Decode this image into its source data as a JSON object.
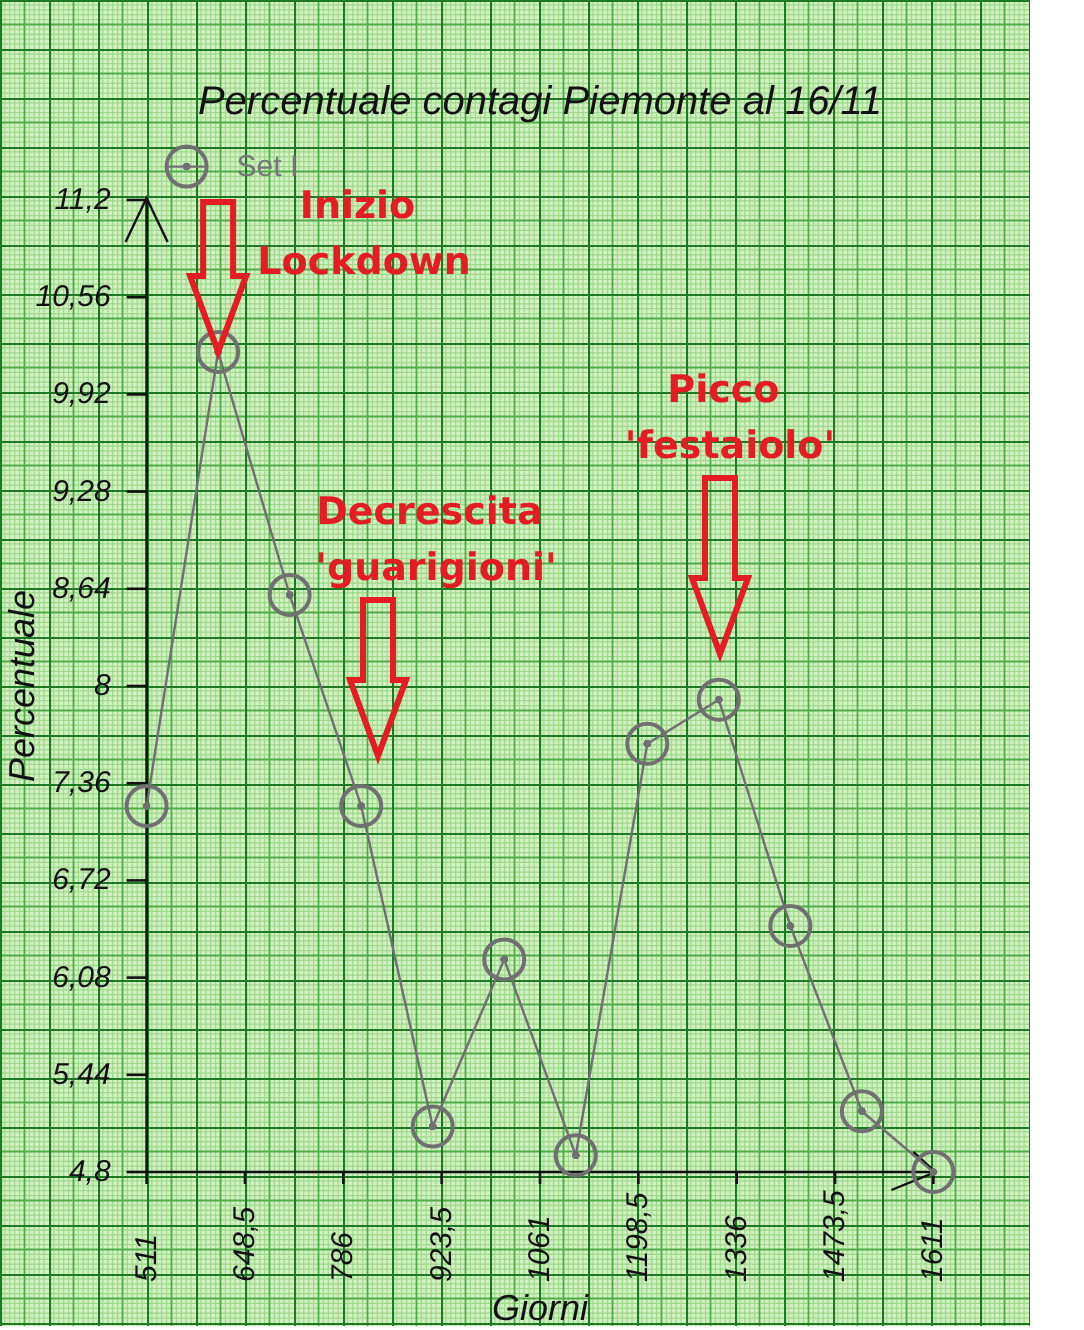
{
  "chart_data": {
    "type": "line",
    "title": "Percentuale contagi Piemonte al 16/11",
    "xlabel": "Giorni",
    "ylabel": "Percentuale",
    "x": [
      511,
      611,
      711,
      811,
      911,
      1011,
      1111,
      1211,
      1311,
      1411,
      1511,
      1611
    ],
    "series": [
      {
        "name": "Set I",
        "color": "#707070",
        "values": [
          7.21,
          10.2,
          8.6,
          7.21,
          5.1,
          6.2,
          4.91,
          7.62,
          7.91,
          6.42,
          5.2,
          4.8
        ]
      }
    ],
    "xlim": [
      511,
      1611
    ],
    "xticks": [
      511,
      {
        "value": 648.5,
        "label": "648,5"
      },
      786,
      {
        "value": 923.5,
        "label": "923,5"
      },
      1061,
      {
        "value": 1198.5,
        "label": "1198,5"
      },
      1336,
      {
        "value": 1473.5,
        "label": "1473,5"
      },
      1611
    ],
    "ylim": [
      4.8,
      11.2
    ],
    "yticks": [
      {
        "value": 4.8,
        "label": "4,8"
      },
      {
        "value": 5.44,
        "label": "5,44"
      },
      {
        "value": 6.08,
        "label": "6,08"
      },
      {
        "value": 6.72,
        "label": "6,72"
      },
      {
        "value": 7.36,
        "label": "7,36"
      },
      8,
      {
        "value": 8.64,
        "label": "8,64"
      },
      {
        "value": 9.28,
        "label": "9,28"
      },
      {
        "value": 9.92,
        "label": "9,92"
      },
      {
        "value": 10.56,
        "label": "10,56"
      },
      {
        "value": 11.2,
        "label": "11,2"
      }
    ],
    "legend": "top left",
    "marker": "circle",
    "line_style": "solid",
    "annotations": [
      {
        "text": "Inizio Lockdown",
        "x": 611,
        "y": 10.2
      },
      "Decrescita 'guarigioni'",
      "Picco 'festaiolo'"
    ]
  }
}
